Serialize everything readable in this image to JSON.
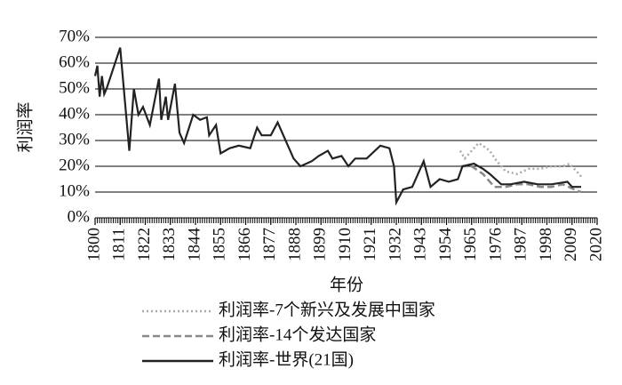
{
  "chart_data": {
    "type": "line",
    "ylabel": "利润率",
    "xlabel": "年份",
    "xlim": [
      1800,
      2020
    ],
    "xticks": [
      1800,
      1811,
      1822,
      1833,
      1844,
      1855,
      1866,
      1877,
      1888,
      1899,
      1910,
      1921,
      1932,
      1943,
      1954,
      1965,
      1976,
      1987,
      1998,
      2009,
      2020
    ],
    "ylim": [
      0,
      70
    ],
    "yticks": [
      {
        "value": 0,
        "label": "0%"
      },
      {
        "value": 10,
        "label": "10%"
      },
      {
        "value": 20,
        "label": "20%"
      },
      {
        "value": 30,
        "label": "30%"
      },
      {
        "value": 40,
        "label": "40%"
      },
      {
        "value": 50,
        "label": "50%"
      },
      {
        "value": 60,
        "label": "60%"
      },
      {
        "value": 70,
        "label": "70%"
      }
    ],
    "grid": true,
    "legend": "bottom",
    "series": [
      {
        "name": "利润率-7个新兴及发展中国家",
        "color": "#aaaaaa",
        "style": "dotted",
        "x": [
          1960,
          1962,
          1965,
          1968,
          1970,
          1973,
          1976,
          1980,
          1985,
          1990,
          1995,
          2000,
          2005,
          2008,
          2011,
          2013
        ],
        "values": [
          26,
          23,
          26,
          29,
          28,
          26,
          22,
          18,
          17,
          19,
          19,
          20,
          20,
          21,
          18,
          16
        ]
      },
      {
        "name": "利润率-14个发达国家",
        "color": "#888888",
        "style": "dashed",
        "x": [
          1960,
          1965,
          1970,
          1975,
          1980,
          1985,
          1990,
          1995,
          2000,
          2005,
          2010,
          2013
        ],
        "values": [
          20,
          20,
          17,
          12,
          12,
          13,
          13,
          12,
          12,
          13,
          11,
          10
        ]
      },
      {
        "name": "利润率-世界(21国)",
        "color": "#222222",
        "style": "solid",
        "x": [
          1800,
          1801,
          1802,
          1803,
          1804,
          1805,
          1811,
          1815,
          1817,
          1819,
          1821,
          1824,
          1828,
          1829,
          1831,
          1832,
          1835,
          1837,
          1839,
          1843,
          1846,
          1849,
          1850,
          1853,
          1855,
          1859,
          1863,
          1868,
          1871,
          1873,
          1877,
          1880,
          1884,
          1887,
          1890,
          1895,
          1898,
          1902,
          1904,
          1908,
          1911,
          1914,
          1919,
          1925,
          1929,
          1931,
          1932,
          1935,
          1939,
          1944,
          1947,
          1951,
          1955,
          1959,
          1961,
          1966,
          1970,
          1973,
          1978,
          1982,
          1988,
          1994,
          2000,
          2007,
          2009,
          2013
        ],
        "values": [
          55,
          59,
          47,
          55,
          48,
          50,
          66,
          26,
          50,
          40,
          43,
          36,
          54,
          38,
          47,
          38,
          52,
          33,
          29,
          40,
          38,
          39,
          32,
          36,
          25,
          27,
          28,
          27,
          35,
          32,
          32,
          37,
          29,
          23,
          20,
          22,
          24,
          26,
          23,
          24,
          20,
          23,
          23,
          28,
          27,
          20,
          6,
          11,
          12,
          22,
          12,
          15,
          14,
          15,
          20,
          21,
          19,
          17,
          13,
          13,
          14,
          13,
          13,
          14,
          12,
          12
        ]
      }
    ]
  }
}
